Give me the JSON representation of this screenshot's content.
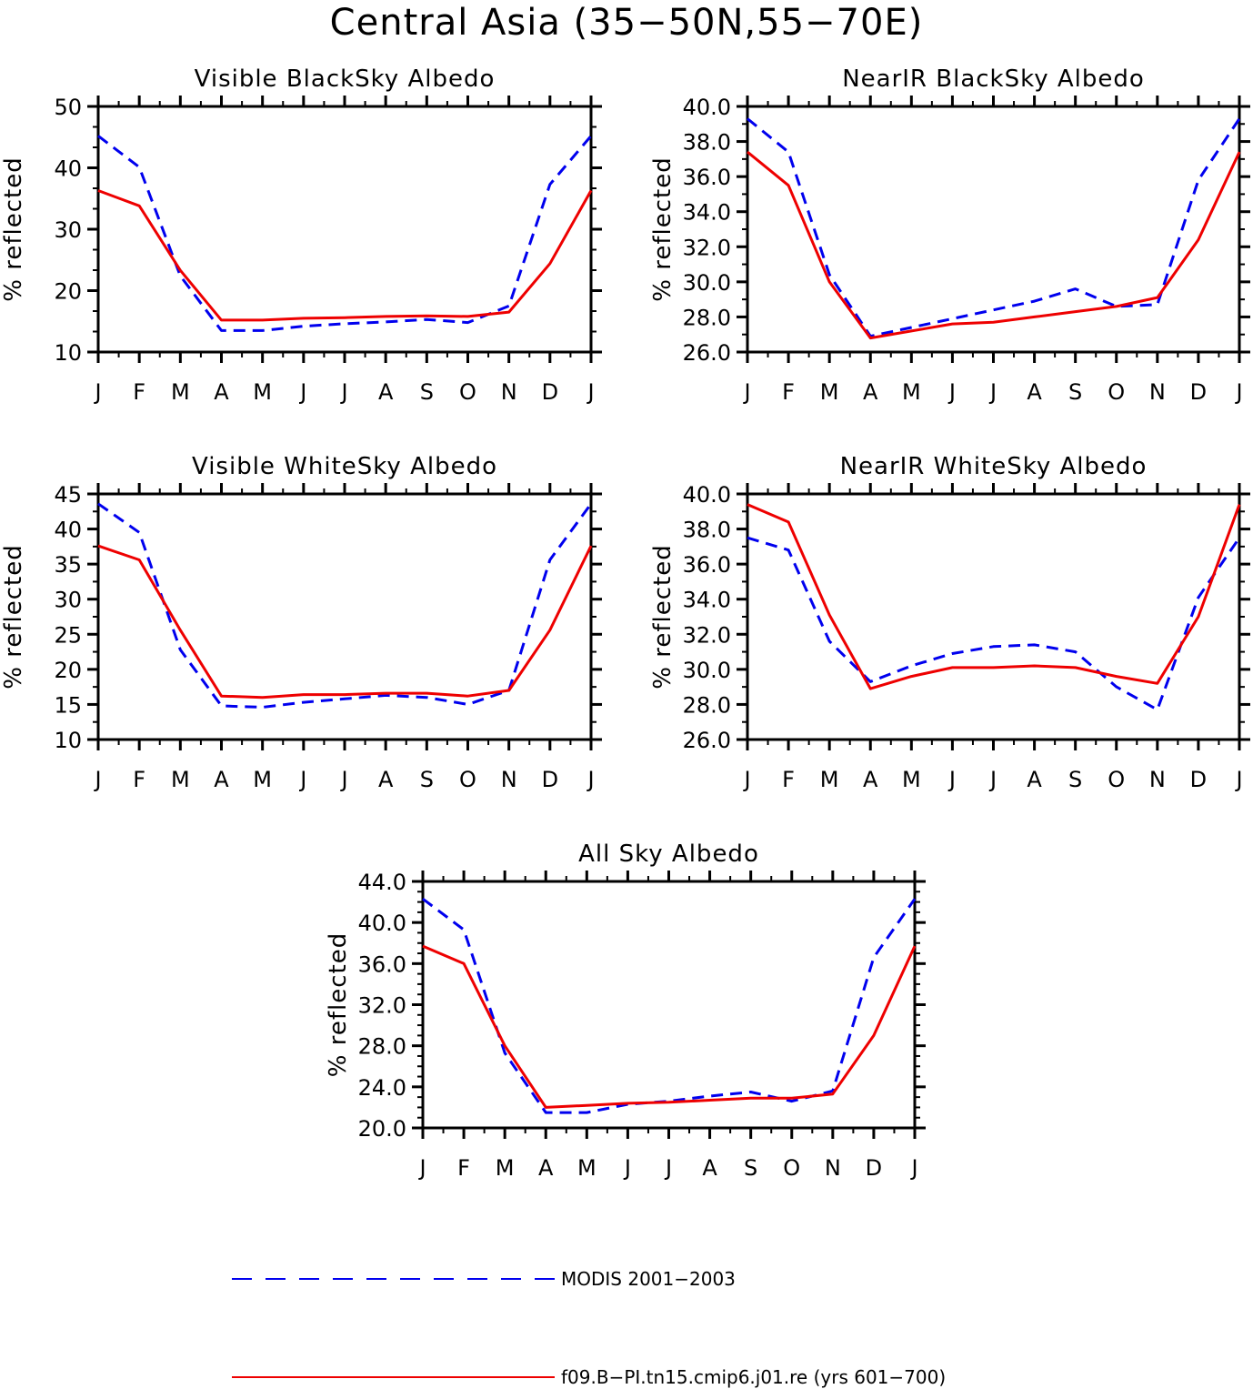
{
  "title": "Central Asia (35−50N,55−70E)",
  "months": [
    "J",
    "F",
    "M",
    "A",
    "M",
    "J",
    "J",
    "A",
    "S",
    "O",
    "N",
    "D",
    "J"
  ],
  "colors": {
    "modis": "#0000ee",
    "model": "#ee0000",
    "axis": "#000000"
  },
  "legend": [
    {
      "label": "MODIS 2001−2003",
      "style": "dashed",
      "color": "#0000ee"
    },
    {
      "label": "f09.B−PI.tn15.cmip6.j01.re (yrs 601−700)",
      "style": "solid",
      "color": "#ee0000"
    }
  ],
  "chart_data": [
    {
      "type": "line",
      "title": "Visible BlackSky Albedo",
      "ylabel": "% reflected",
      "ylim": [
        10,
        50
      ],
      "yticks": [
        10,
        20,
        30,
        40,
        50
      ],
      "ytick_labels": [
        "10",
        "20",
        "30",
        "40",
        "50"
      ],
      "yminor": 2,
      "series": [
        {
          "name": "MODIS 2001−2003",
          "style": "dashed",
          "values": [
            45.2,
            40.1,
            22.4,
            13.5,
            13.5,
            14.2,
            14.6,
            14.9,
            15.3,
            14.8,
            17.5,
            37.3,
            45.2
          ]
        },
        {
          "name": "f09.B−PI.tn15.cmip6.j01.re (yrs 601−700)",
          "style": "solid",
          "values": [
            36.3,
            33.8,
            23.3,
            15.2,
            15.2,
            15.5,
            15.6,
            15.8,
            15.9,
            15.8,
            16.5,
            24.4,
            36.3
          ]
        }
      ]
    },
    {
      "type": "line",
      "title": "NearIR BlackSky Albedo",
      "ylabel": "% reflected",
      "ylim": [
        26.0,
        40.0
      ],
      "yticks": [
        26,
        28,
        30,
        32,
        34,
        36,
        38,
        40
      ],
      "ytick_labels": [
        "26.0",
        "28.0",
        "30.0",
        "32.0",
        "34.0",
        "36.0",
        "38.0",
        "40.0"
      ],
      "yminor": 1,
      "series": [
        {
          "name": "MODIS 2001−2003",
          "style": "dashed",
          "values": [
            39.3,
            37.4,
            30.4,
            26.9,
            27.4,
            27.9,
            28.4,
            28.9,
            29.6,
            28.6,
            28.7,
            35.8,
            39.3
          ]
        },
        {
          "name": "f09.B−PI.tn15.cmip6.j01.re (yrs 601−700)",
          "style": "solid",
          "values": [
            37.4,
            35.5,
            30.0,
            26.8,
            27.2,
            27.6,
            27.7,
            28.0,
            28.3,
            28.6,
            29.1,
            32.4,
            37.4
          ]
        }
      ]
    },
    {
      "type": "line",
      "title": "Visible WhiteSky Albedo",
      "ylabel": "% reflected",
      "ylim": [
        10,
        45
      ],
      "yticks": [
        10,
        15,
        20,
        25,
        30,
        35,
        40,
        45
      ],
      "ytick_labels": [
        "10",
        "15",
        "20",
        "25",
        "30",
        "35",
        "40",
        "45"
      ],
      "yminor": 1,
      "series": [
        {
          "name": "MODIS 2001−2003",
          "style": "dashed",
          "values": [
            43.6,
            39.5,
            22.8,
            14.8,
            14.6,
            15.3,
            15.8,
            16.3,
            16.0,
            15.0,
            17.0,
            35.6,
            43.6
          ]
        },
        {
          "name": "f09.B−PI.tn15.cmip6.j01.re (yrs 601−700)",
          "style": "solid",
          "values": [
            37.6,
            35.6,
            25.6,
            16.2,
            16.0,
            16.4,
            16.4,
            16.6,
            16.6,
            16.2,
            17.0,
            25.6,
            37.6
          ]
        }
      ]
    },
    {
      "type": "line",
      "title": "NearIR WhiteSky Albedo",
      "ylabel": "% reflected",
      "ylim": [
        26.0,
        40.0
      ],
      "yticks": [
        26,
        28,
        30,
        32,
        34,
        36,
        38,
        40
      ],
      "ytick_labels": [
        "26.0",
        "28.0",
        "30.0",
        "32.0",
        "34.0",
        "36.0",
        "38.0",
        "40.0"
      ],
      "yminor": 1,
      "series": [
        {
          "name": "MODIS 2001−2003",
          "style": "dashed",
          "values": [
            37.5,
            36.8,
            31.6,
            29.3,
            30.2,
            30.9,
            31.3,
            31.4,
            31.0,
            29.0,
            27.7,
            34.1,
            37.5
          ]
        },
        {
          "name": "f09.B−PI.tn15.cmip6.j01.re (yrs 601−700)",
          "style": "solid",
          "values": [
            39.4,
            38.4,
            33.1,
            28.9,
            29.6,
            30.1,
            30.1,
            30.2,
            30.1,
            29.6,
            29.2,
            33.0,
            39.4
          ]
        }
      ]
    },
    {
      "type": "line",
      "title": "All Sky Albedo",
      "ylabel": "% reflected",
      "ylim": [
        20.0,
        44.0
      ],
      "yticks": [
        20,
        24,
        28,
        32,
        36,
        40,
        44
      ],
      "ytick_labels": [
        "20.0",
        "24.0",
        "28.0",
        "32.0",
        "36.0",
        "40.0",
        "44.0"
      ],
      "yminor": 3,
      "series": [
        {
          "name": "MODIS 2001−2003",
          "style": "dashed",
          "values": [
            42.3,
            39.3,
            27.3,
            21.5,
            21.5,
            22.3,
            22.6,
            23.1,
            23.5,
            22.6,
            23.6,
            36.6,
            42.3
          ]
        },
        {
          "name": "f09.B−PI.tn15.cmip6.j01.re (yrs 601−700)",
          "style": "solid",
          "values": [
            37.7,
            36.0,
            28.0,
            22.0,
            22.2,
            22.4,
            22.5,
            22.7,
            22.9,
            22.9,
            23.3,
            29.0,
            37.7
          ]
        }
      ]
    }
  ]
}
